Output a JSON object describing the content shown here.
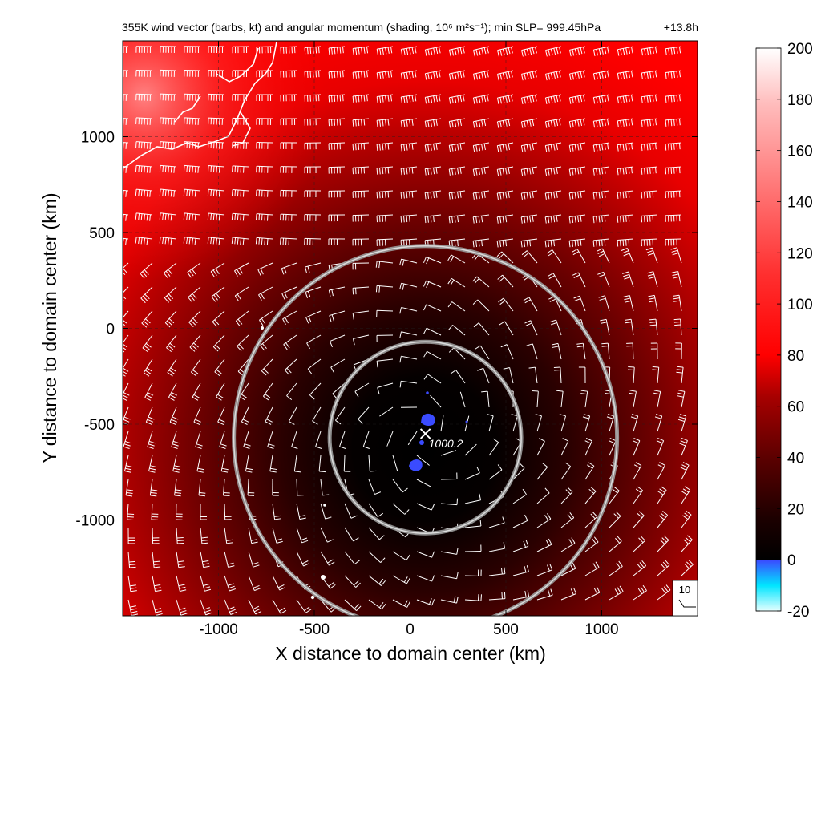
{
  "chart_data": {
    "type": "heatmap",
    "title": "355K wind vector (barbs, kt) and angular momentum (shading, 10⁶ m²s⁻¹); min SLP= 999.45hPa",
    "time_label": "+13.8h",
    "xlabel": "X distance to domain center (km)",
    "ylabel": "Y distance to domain center (km)",
    "xlim": [
      -1500,
      1500
    ],
    "ylim": [
      -1500,
      1500
    ],
    "xticks": [
      -1000,
      -500,
      0,
      500,
      1000
    ],
    "yticks": [
      -1000,
      -500,
      0,
      500,
      1000
    ],
    "xtick_labels": [
      "-1000",
      "-500",
      "0",
      "500",
      "1000"
    ],
    "ytick_labels": [
      "-1000",
      "-500",
      "0",
      "500",
      "1000"
    ],
    "grid": true,
    "colorbar": {
      "range": [
        -20,
        200
      ],
      "ticks": [
        -20,
        0,
        20,
        40,
        60,
        80,
        100,
        120,
        140,
        160,
        180,
        200
      ],
      "tick_labels": [
        "-20",
        "0",
        "20",
        "40",
        "60",
        "80",
        "100",
        "120",
        "140",
        "160",
        "180",
        "200"
      ]
    },
    "center_marker": {
      "x": 80,
      "y": -550,
      "label": "1000.2"
    },
    "rings": [
      {
        "center_x": 80,
        "center_y": -570,
        "radius_km": 500
      },
      {
        "center_x": 80,
        "center_y": -570,
        "radius_km": 1000
      }
    ],
    "minimum_momentum_region": {
      "x": [
        -5,
        85
      ],
      "y": [
        -750,
        -450
      ],
      "value_range": [
        -5,
        0
      ]
    },
    "reference_barb": {
      "label": "10",
      "speed_kt": 10
    }
  }
}
